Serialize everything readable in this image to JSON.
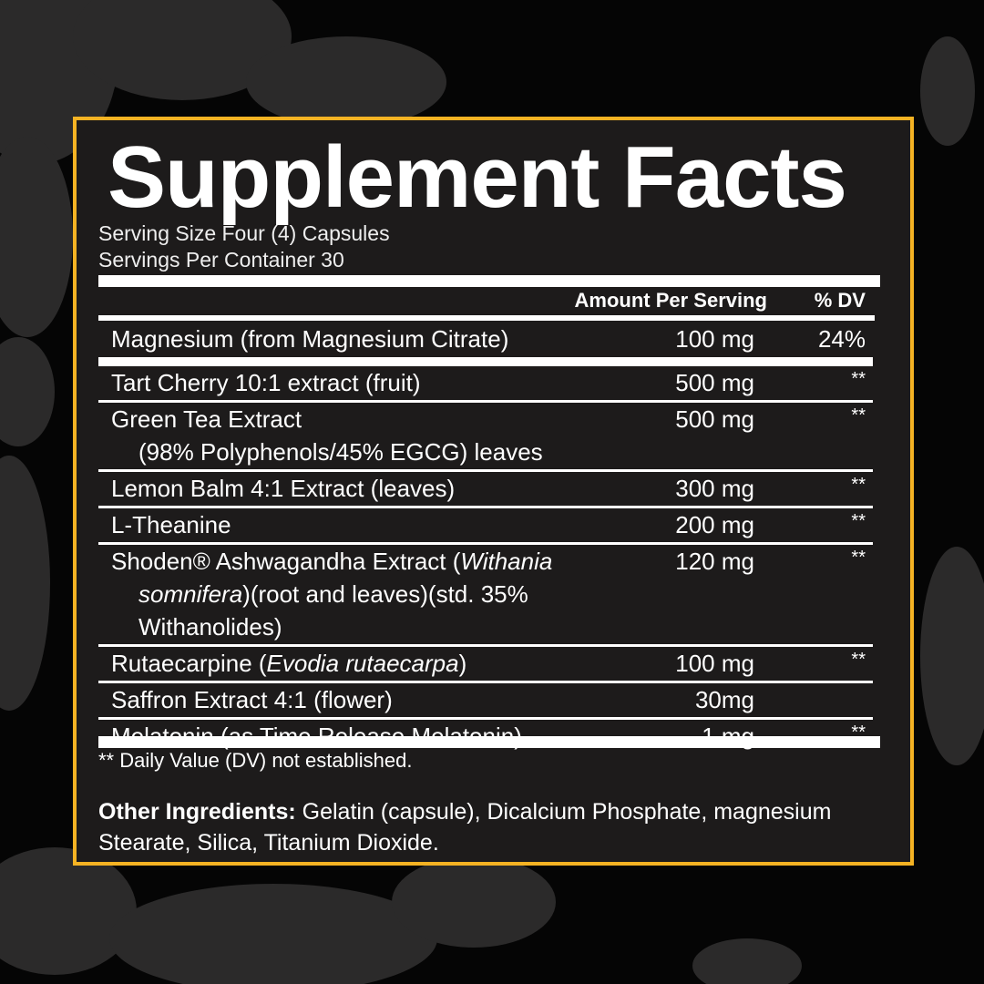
{
  "title": "Supplement Facts",
  "serving_size": "Serving Size Four (4) Capsules",
  "servings_per_container": "Servings Per Container 30",
  "header": {
    "amount": "Amount Per Serving",
    "dv": "% DV"
  },
  "ingredients": [
    {
      "name": "Magnesium (from Magnesium Citrate)",
      "amount": "100 mg",
      "dv": "24%"
    },
    {
      "name": "Tart Cherry 10:1 extract (fruit)",
      "amount": "500 mg",
      "dv": "**"
    },
    {
      "name": "Green Tea Extract",
      "name_line2": "(98% Polyphenols/45% EGCG) leaves",
      "amount": "500 mg",
      "dv": "**"
    },
    {
      "name": "Lemon Balm 4:1 Extract (leaves)",
      "amount": "300 mg",
      "dv": "**"
    },
    {
      "name": "L-Theanine",
      "amount": "200 mg",
      "dv": "**"
    },
    {
      "name": "Shoden® Ashwagandha Extract (",
      "name_italic": "Withania",
      "name_line2_italic": "somnifera",
      "name_line2": ")(root and leaves)(std. 35%",
      "name_line3": "Withanolides)",
      "amount": "120 mg",
      "dv": "**"
    },
    {
      "name": "Rutaecarpine (",
      "name_italic": "Evodia rutaecarpa",
      "name_end": ")",
      "amount": "100 mg",
      "dv": "**"
    },
    {
      "name": "Saffron Extract 4:1 (flower)",
      "amount": "30mg",
      "dv": ""
    },
    {
      "name": "Melatonin (as Time Release Melatonin)",
      "amount": "1 mg",
      "dv": "**"
    }
  ],
  "footnote": "** Daily Value (DV) not established.",
  "other_ingredients": {
    "label": "Other Ingredients:",
    "text": " Gelatin (capsule), Dicalcium Phosphate, magnesium Stearate, Silica, Titanium Dioxide."
  },
  "colors": {
    "border": "#f5b323",
    "panel": "#1d1b1b",
    "background": "#050505"
  }
}
